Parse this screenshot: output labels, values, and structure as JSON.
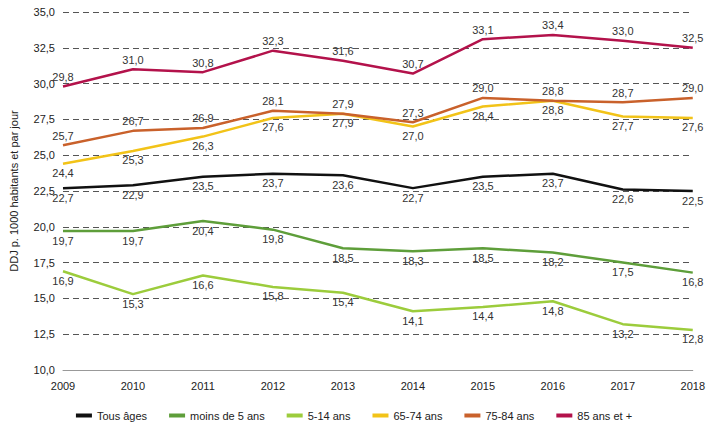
{
  "chart_data": {
    "type": "line",
    "y_label": "DDJ p. 1000 habitants et par jour",
    "categories": [
      "2009",
      "2010",
      "2011",
      "2012",
      "2013",
      "2014",
      "2015",
      "2016",
      "2017",
      "2018"
    ],
    "ylim": [
      10,
      35
    ],
    "yticks": [
      {
        "value": 10,
        "label": "10,0"
      },
      {
        "value": 12.5,
        "label": "12,5"
      },
      {
        "value": 15,
        "label": "15,0"
      },
      {
        "value": 17.5,
        "label": "17,5"
      },
      {
        "value": 20,
        "label": "20,0"
      },
      {
        "value": 22.5,
        "label": "22,5"
      },
      {
        "value": 25,
        "label": "25,0"
      },
      {
        "value": 27.5,
        "label": "27,5"
      },
      {
        "value": 30,
        "label": "30,0"
      },
      {
        "value": 32.5,
        "label": "32,5"
      },
      {
        "value": 35,
        "label": "35,0"
      }
    ],
    "grid": true,
    "legend": "bottom",
    "data_labels": true,
    "marker": "none",
    "series": [
      {
        "name": "Tous âges",
        "color": "#111111",
        "values": [
          22.7,
          22.9,
          23.5,
          23.7,
          23.6,
          22.7,
          23.5,
          23.7,
          22.6,
          22.5
        ],
        "value_labels": [
          "22,7",
          "22,9",
          "23,5",
          "23,7",
          "23,6",
          "22,7",
          "23,5",
          "23,7",
          "22,6",
          "22,5"
        ]
      },
      {
        "name": "moins de 5 ans",
        "color": "#5e9e3a",
        "values": [
          19.7,
          19.7,
          20.4,
          19.8,
          18.5,
          18.3,
          18.5,
          18.2,
          17.5,
          16.8
        ],
        "value_labels": [
          "19,7",
          "19,7",
          "20,4",
          "19,8",
          "18,5",
          "18,3",
          "18,5",
          "18,2",
          "17,5",
          "16,8"
        ]
      },
      {
        "name": "5-14 ans",
        "color": "#9ccc3c",
        "values": [
          16.9,
          15.3,
          16.6,
          15.8,
          15.4,
          14.1,
          14.4,
          14.8,
          13.2,
          12.8
        ],
        "value_labels": [
          "16,9",
          "15,3",
          "16,6",
          "15,8",
          "15,4",
          "14,1",
          "14,4",
          "14,8",
          "13,2",
          "12,8"
        ]
      },
      {
        "name": "65-74 ans",
        "color": "#f2c318",
        "values": [
          24.4,
          25.3,
          26.3,
          27.6,
          27.9,
          27.0,
          28.4,
          28.8,
          27.7,
          27.6
        ],
        "value_labels": [
          "24,4",
          "25,3",
          "26,3",
          "27,6",
          "27,9",
          "27,0",
          "28,4",
          "28,8",
          "27,7",
          "27,6"
        ]
      },
      {
        "name": "75-84 ans",
        "color": "#c9612b",
        "values": [
          25.7,
          26.7,
          26.9,
          28.1,
          27.9,
          27.3,
          29.0,
          28.8,
          28.7,
          29.0
        ],
        "value_labels": [
          "25,7",
          "26,7",
          "26,9",
          "28,1",
          "27,9",
          "27,3",
          "29,0",
          "28,8",
          "28,7",
          "29,0"
        ]
      },
      {
        "name": "85 ans et +",
        "color": "#b3124b",
        "values": [
          29.8,
          31.0,
          30.8,
          32.3,
          31.6,
          30.7,
          33.1,
          33.4,
          33.0,
          32.5
        ],
        "value_labels": [
          "29,8",
          "31,0",
          "30,8",
          "32,3",
          "31,6",
          "30,7",
          "33,1",
          "33,4",
          "33,0",
          "32,5"
        ]
      }
    ]
  }
}
